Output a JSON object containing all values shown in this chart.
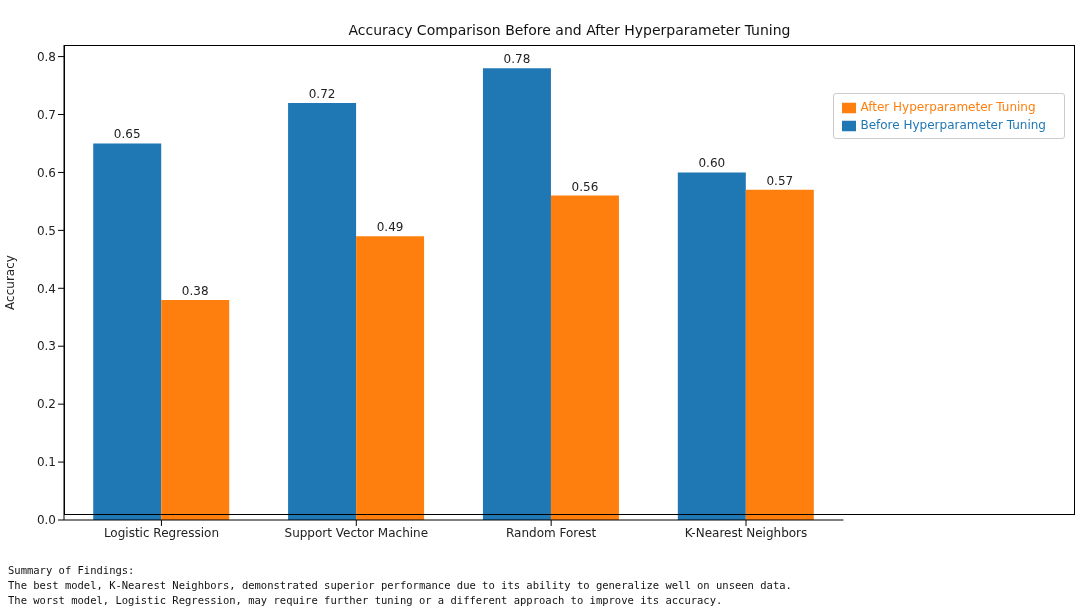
{
  "chart_data": {
    "type": "bar",
    "title": "Accuracy Comparison Before and After Hyperparameter Tuning",
    "ylabel": "Accuracy",
    "categories": [
      "Logistic Regression",
      "Support Vector Machine",
      "Random Forest",
      "K-Nearest Neighbors"
    ],
    "series": [
      {
        "name": "Before Hyperparameter Tuning",
        "color": "#1f77b4",
        "values": [
          0.65,
          0.72,
          0.78,
          0.6
        ],
        "value_labels": [
          "0.65",
          "0.72",
          "0.78",
          "0.60"
        ]
      },
      {
        "name": "After Hyperparameter Tuning",
        "color": "#ff7f0e",
        "values": [
          0.38,
          0.49,
          0.56,
          0.57
        ],
        "value_labels": [
          "0.38",
          "0.49",
          "0.56",
          "0.57"
        ]
      }
    ],
    "ylim": [
      0,
      0.82
    ],
    "yticks": [
      {
        "value": 0,
        "label": "0.0"
      },
      0.1,
      0.2,
      0.3,
      0.4,
      0.5,
      0.6,
      0.7,
      0.8
    ],
    "grid": false,
    "legend": "top right",
    "annotations": [
      "Summary of Findings:",
      "The best model, K-Nearest Neighbors, demonstrated superior performance due to its ability to generalize well on unseen data.",
      "The worst model, Logistic Regression, may require further tuning or a different approach to improve its accuracy."
    ]
  }
}
